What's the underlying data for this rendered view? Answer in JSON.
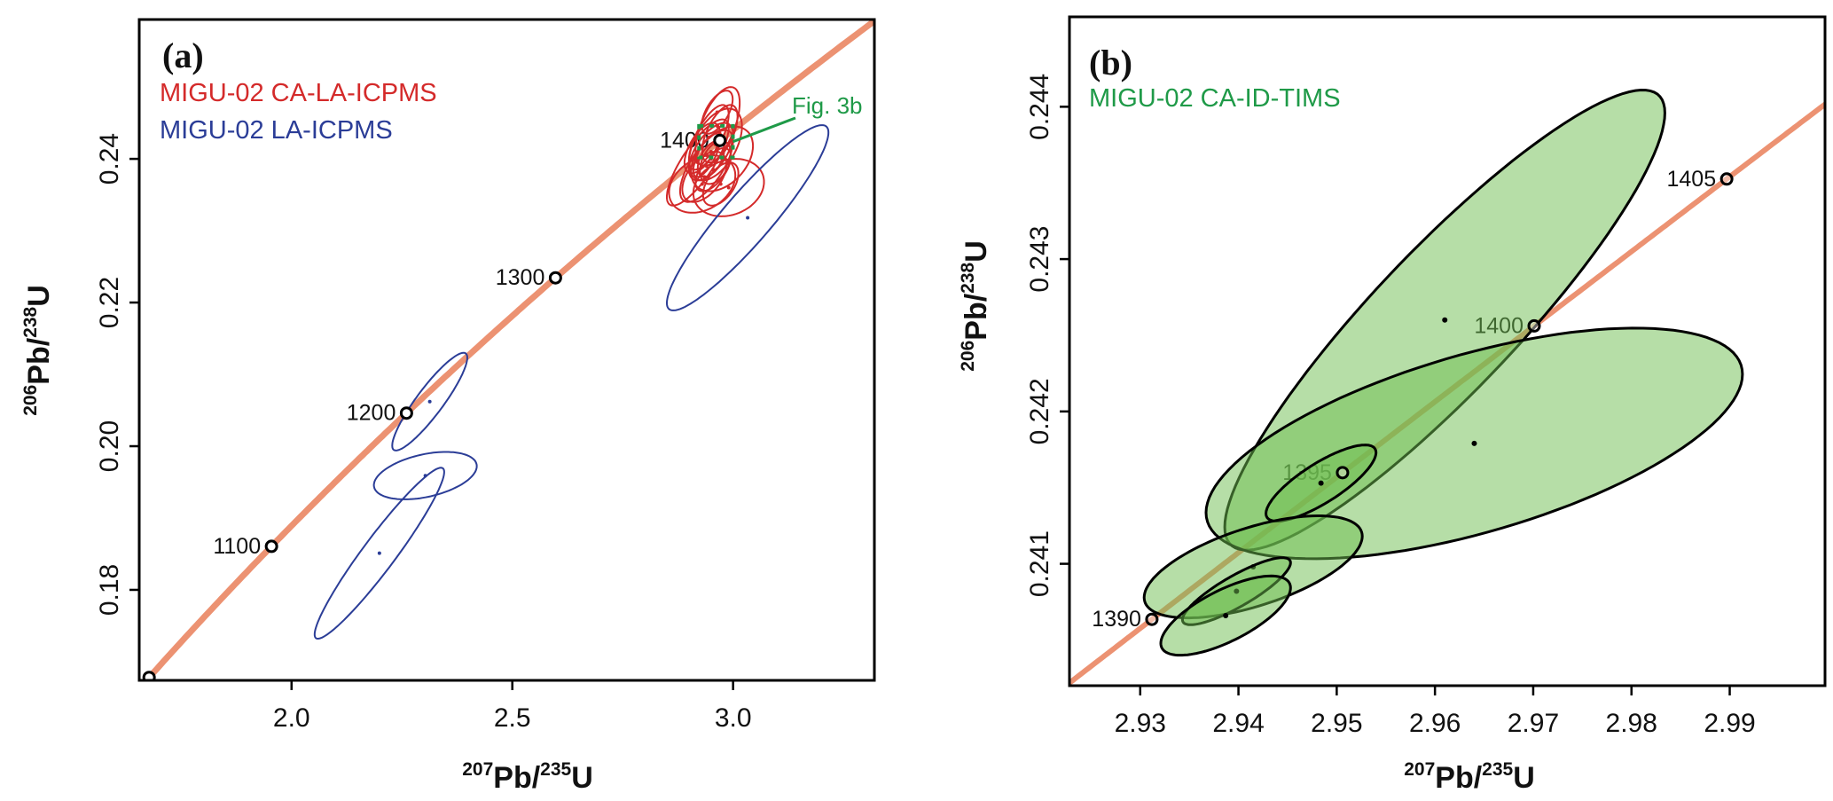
{
  "colors": {
    "concordia": "#ec9272",
    "la_icpms_ca": "#d42a2a",
    "la_icpms": "#2b3d97",
    "id_tims": "#1f9a48",
    "id_tims_fill": "rgba(110,190,80,0.5)"
  },
  "chart_data": [
    {
      "type": "scatter",
      "panel_label": "(a)",
      "xlabel": {
        "mass": "207",
        "element": "Pb/",
        "mass2": "235",
        "element2": "U"
      },
      "ylabel": {
        "mass": "206",
        "element": "Pb/",
        "mass2": "238",
        "element2": "U"
      },
      "xlim": [
        1.655,
        3.32
      ],
      "ylim": [
        0.1674,
        0.2594
      ],
      "xticks": [
        {
          "value": 2.0,
          "label": "2.0"
        },
        {
          "value": 2.5,
          "label": "2.5"
        },
        {
          "value": 3.0,
          "label": "3.0"
        }
      ],
      "yticks": [
        {
          "value": 0.18,
          "label": "0.18"
        },
        {
          "value": 0.2,
          "label": "0.20"
        },
        {
          "value": 0.22,
          "label": "0.22"
        },
        {
          "value": 0.24,
          "label": "0.24"
        }
      ],
      "grid": false,
      "legend_placement": "top-left",
      "concordia": {
        "age_range_ma": [
          950,
          1500
        ],
        "markers": [
          {
            "age": 1000,
            "label": ""
          },
          {
            "age": 1100,
            "label": "1100"
          },
          {
            "age": 1200,
            "label": "1200"
          },
          {
            "age": 1300,
            "label": "1300"
          },
          {
            "age": 1400,
            "label": "1400"
          }
        ]
      },
      "series": [
        {
          "name": "MIGU-02 CA-LA-ICPMS",
          "color_key": "la_icpms_ca",
          "ellipses": [
            {
              "x": 2.965,
              "y": 0.2445,
              "x_err": 0.05,
              "y_err": 0.0055,
              "rho": 0.6
            },
            {
              "x": 2.93,
              "y": 0.2365,
              "x_err": 0.075,
              "y_err": 0.004,
              "rho": 0.3
            },
            {
              "x": 2.99,
              "y": 0.236,
              "x_err": 0.08,
              "y_err": 0.004,
              "rho": 0.2
            },
            {
              "x": 2.94,
              "y": 0.239,
              "x_err": 0.06,
              "y_err": 0.005,
              "rho": 0.7
            },
            {
              "x": 2.95,
              "y": 0.241,
              "x_err": 0.05,
              "y_err": 0.004,
              "rho": 0.6
            },
            {
              "x": 2.96,
              "y": 0.242,
              "x_err": 0.06,
              "y_err": 0.005,
              "rho": 0.5
            },
            {
              "x": 2.92,
              "y": 0.2395,
              "x_err": 0.07,
              "y_err": 0.006,
              "rho": 0.8
            },
            {
              "x": 2.975,
              "y": 0.24,
              "x_err": 0.07,
              "y_err": 0.0045,
              "rho": 0.4
            },
            {
              "x": 2.945,
              "y": 0.243,
              "x_err": 0.045,
              "y_err": 0.0045,
              "rho": 0.7
            },
            {
              "x": 2.935,
              "y": 0.2375,
              "x_err": 0.05,
              "y_err": 0.0035,
              "rho": 0.5
            },
            {
              "x": 2.955,
              "y": 0.2385,
              "x_err": 0.04,
              "y_err": 0.003,
              "rho": 0.6
            },
            {
              "x": 2.97,
              "y": 0.2435,
              "x_err": 0.04,
              "y_err": 0.004,
              "rho": 0.6
            },
            {
              "x": 2.93,
              "y": 0.2415,
              "x_err": 0.04,
              "y_err": 0.0035,
              "rho": 0.6
            },
            {
              "x": 2.95,
              "y": 0.24,
              "x_err": 0.03,
              "y_err": 0.0025,
              "rho": 0.5
            },
            {
              "x": 2.96,
              "y": 0.2395,
              "x_err": 0.035,
              "y_err": 0.003,
              "rho": 0.4
            },
            {
              "x": 2.94,
              "y": 0.2405,
              "x_err": 0.03,
              "y_err": 0.003,
              "rho": 0.7
            },
            {
              "x": 2.964,
              "y": 0.2465,
              "x_err": 0.035,
              "y_err": 0.003,
              "rho": 0.6
            },
            {
              "x": 2.972,
              "y": 0.2365,
              "x_err": 0.04,
              "y_err": 0.003,
              "rho": 0.5
            }
          ]
        },
        {
          "name": "MIGU-02 LA-ICPMS",
          "color_key": "la_icpms",
          "ellipses": [
            {
              "x": 2.313,
              "y": 0.2062,
              "x_err": 0.085,
              "y_err": 0.0068,
              "rho": 0.9
            },
            {
              "x": 2.303,
              "y": 0.1959,
              "x_err": 0.1165,
              "y_err": 0.0033,
              "rho": 0.4
            },
            {
              "x": 2.199,
              "y": 0.1851,
              "x_err": 0.1467,
              "y_err": 0.0119,
              "rho": 0.95
            },
            {
              "x": 3.033,
              "y": 0.2318,
              "x_err": 0.183,
              "y_err": 0.0129,
              "rho": 0.92
            }
          ]
        }
      ],
      "inset_box": {
        "label": "Fig. 3b",
        "xrange": [
          2.9228,
          2.9997
        ],
        "yrange": [
          0.2402,
          0.24459
        ]
      }
    },
    {
      "type": "scatter",
      "panel_label": "(b)",
      "xlabel": {
        "mass": "207",
        "element": "Pb/",
        "mass2": "235",
        "element2": "U"
      },
      "ylabel": {
        "mass": "206",
        "element": "Pb/",
        "mass2": "238",
        "element2": "U"
      },
      "xlim": [
        2.9228,
        2.9997
      ],
      "ylim": [
        0.2402,
        0.24459
      ],
      "xticks": [
        {
          "value": 2.93,
          "label": "2.93"
        },
        {
          "value": 2.94,
          "label": "2.94"
        },
        {
          "value": 2.95,
          "label": "2.95"
        },
        {
          "value": 2.96,
          "label": "2.96"
        },
        {
          "value": 2.97,
          "label": "2.97"
        },
        {
          "value": 2.98,
          "label": "2.98"
        },
        {
          "value": 2.99,
          "label": "2.99"
        }
      ],
      "yticks": [
        {
          "value": 0.241,
          "label": "0.241"
        },
        {
          "value": 0.242,
          "label": "0.242"
        },
        {
          "value": 0.243,
          "label": "0.243"
        },
        {
          "value": 0.244,
          "label": "0.244"
        }
      ],
      "grid": false,
      "legend_placement": "top-left",
      "concordia": {
        "age_range_ma": [
          1385,
          1410
        ],
        "markers": [
          {
            "age": 1390,
            "label": "1390"
          },
          {
            "age": 1395,
            "label": "1395"
          },
          {
            "age": 1400,
            "label": "1400"
          },
          {
            "age": 1405,
            "label": "1405"
          }
        ]
      },
      "series": [
        {
          "name": "MIGU-02 CA-ID-TIMS",
          "color_key": "id_tims",
          "ellipses": [
            {
              "x": 2.961,
              "y": 0.2426,
              "x_err": 0.0224,
              "y_err": 0.00151,
              "rho": 0.9
            },
            {
              "x": 2.964,
              "y": 0.24179,
              "x_err": 0.0273,
              "y_err": 0.000757,
              "rho": 0.6
            },
            {
              "x": 2.9484,
              "y": 0.24153,
              "x_err": 0.0056,
              "y_err": 0.00025,
              "rho": 0.8
            },
            {
              "x": 2.9415,
              "y": 0.24098,
              "x_err": 0.0111,
              "y_err": 0.000335,
              "rho": 0.6
            },
            {
              "x": 2.9398,
              "y": 0.24082,
              "x_err": 0.0055,
              "y_err": 0.00022,
              "rho": 0.85
            },
            {
              "x": 2.9387,
              "y": 0.24066,
              "x_err": 0.0066,
              "y_err": 0.00026,
              "rho": 0.7
            }
          ]
        }
      ]
    }
  ]
}
